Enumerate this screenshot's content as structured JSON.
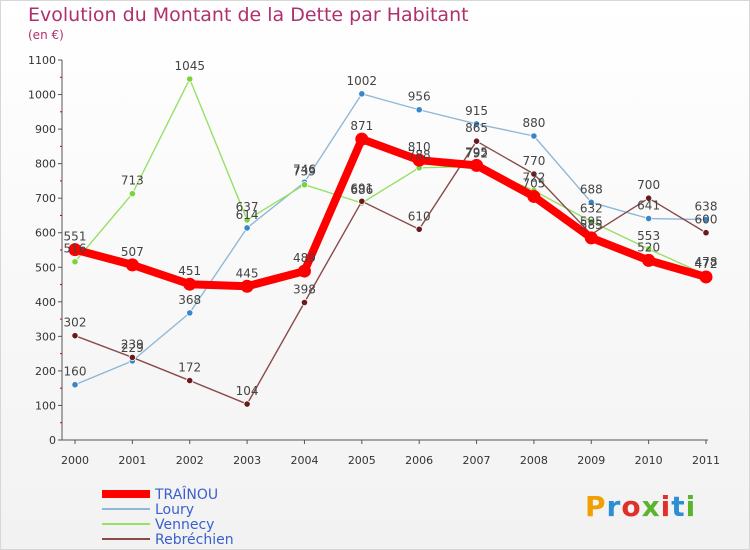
{
  "title": "Evolution du Montant de la Dette par Habitant",
  "unit": "(en €)",
  "logo": {
    "text": "Proxiti",
    "colors": [
      "#f0a000",
      "#2c8fd6",
      "#e0302a",
      "#5ab52a",
      "#e0302a",
      "#2c8fd6",
      "#5ab52a"
    ]
  },
  "chart_data": {
    "type": "line",
    "title": "Evolution du Montant de la Dette par Habitant",
    "ylabel": "(en €)",
    "xlabel": "",
    "ylim": [
      0,
      1100
    ],
    "yticks": [
      0,
      100,
      200,
      300,
      400,
      500,
      600,
      700,
      800,
      900,
      1000,
      1100
    ],
    "x": [
      "2000",
      "2001",
      "2002",
      "2003",
      "2004",
      "2005",
      "2006",
      "2007",
      "2008",
      "2009",
      "2010",
      "2011"
    ],
    "grid": false,
    "legend_position": "bottom-left",
    "series": [
      {
        "name": "TRAÎNOU",
        "color": "#ff0000",
        "point_color": "#ff0000",
        "highlight": true,
        "values": [
          551,
          507,
          451,
          445,
          489,
          871,
          810,
          795,
          705,
          585,
          520,
          472
        ]
      },
      {
        "name": "Loury",
        "color": "#8fb8d8",
        "point_color": "#3a86c8",
        "highlight": false,
        "values": [
          160,
          229,
          368,
          614,
          746,
          1002,
          956,
          915,
          880,
          688,
          641,
          638
        ]
      },
      {
        "name": "Vennecy",
        "color": "#99e066",
        "point_color": "#7ad33a",
        "highlight": false,
        "values": [
          516,
          713,
          1045,
          637,
          739,
          686,
          788,
          792,
          722,
          632,
          553,
          478
        ]
      },
      {
        "name": "Rebréchien",
        "color": "#8a4a4a",
        "point_color": "#6a1a1a",
        "highlight": false,
        "values": [
          302,
          239,
          172,
          104,
          398,
          691,
          610,
          865,
          770,
          595,
          700,
          600
        ]
      }
    ]
  }
}
